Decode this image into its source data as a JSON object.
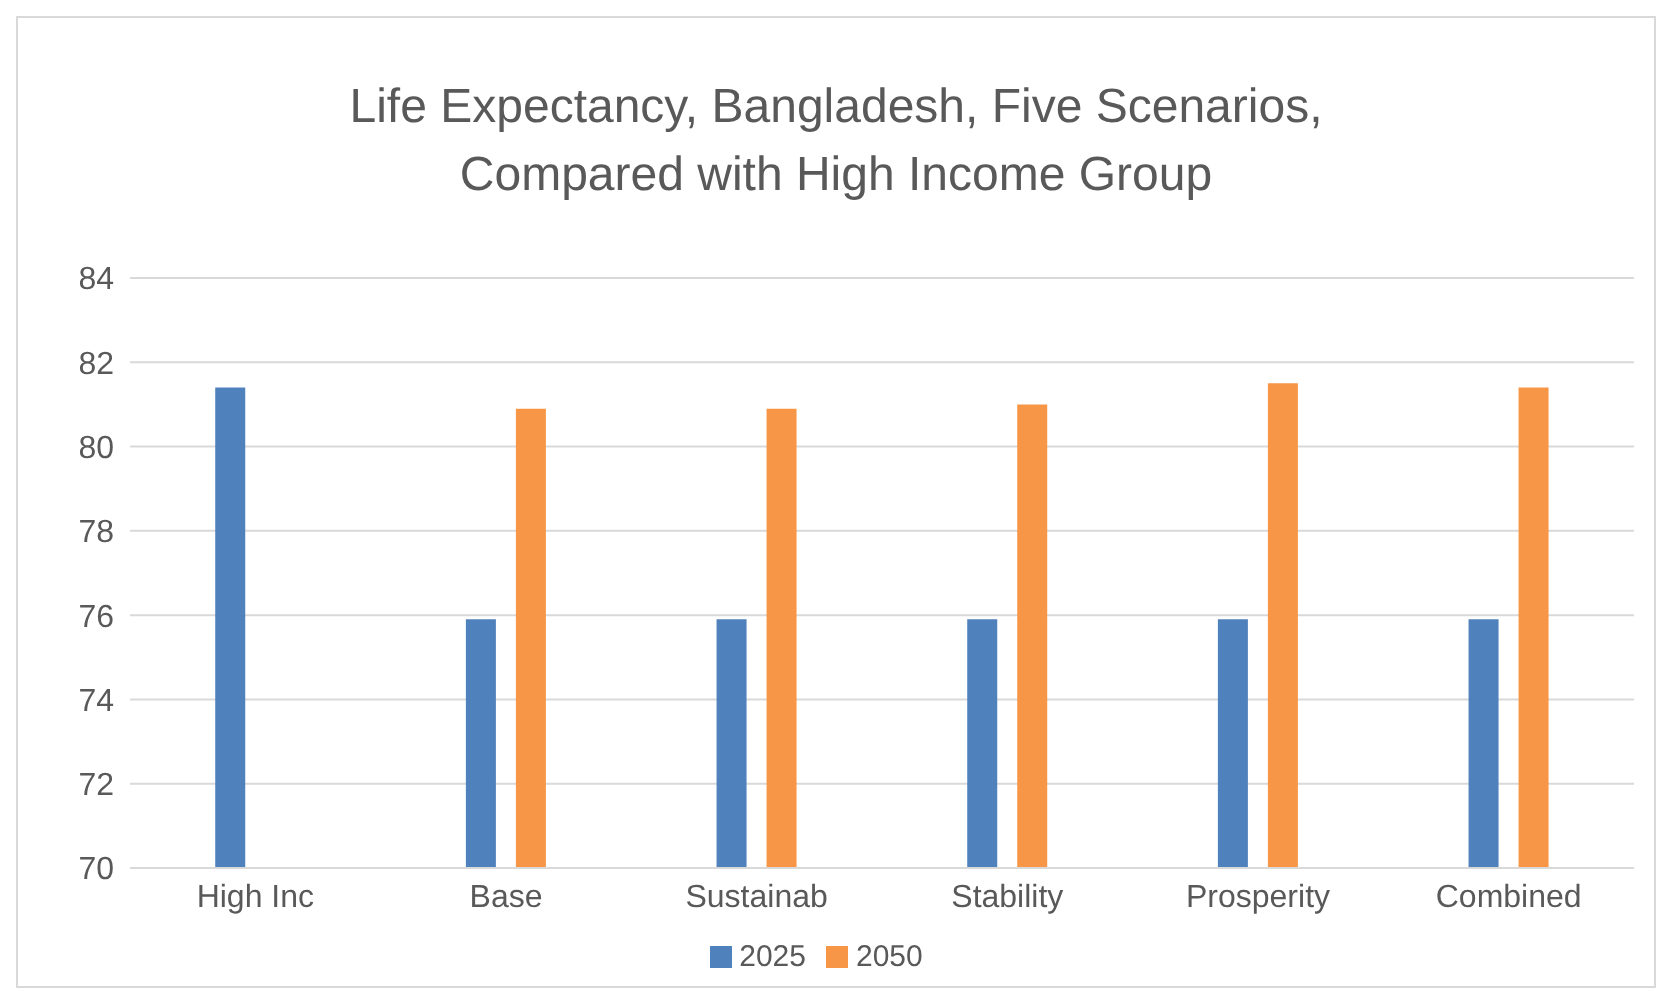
{
  "chart_data": {
    "type": "bar",
    "title": "Life Expectancy, Bangladesh, Five Scenarios, Compared with High Income Group",
    "categories": [
      "High Inc",
      "Base",
      "Sustainab",
      "Stability",
      "Prosperity",
      "Combined"
    ],
    "series": [
      {
        "name": "2025",
        "color": "#4f81bd",
        "values": [
          81.4,
          75.9,
          75.9,
          75.9,
          75.9,
          75.9
        ]
      },
      {
        "name": "2050",
        "color": "#f79646",
        "values": [
          null,
          80.9,
          80.9,
          81.0,
          81.5,
          81.4
        ]
      }
    ],
    "ylim": [
      70,
      84
    ],
    "yticks": [
      70,
      72,
      74,
      76,
      78,
      80,
      82,
      84
    ],
    "grid": "y",
    "legend": "bottom"
  }
}
